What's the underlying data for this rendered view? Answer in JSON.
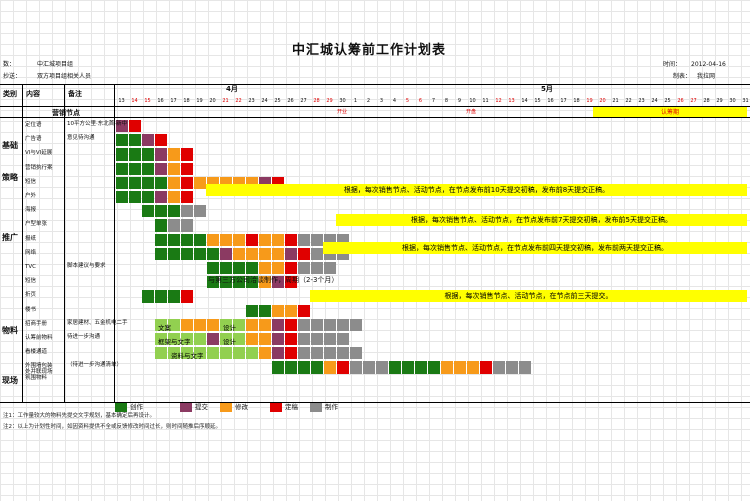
{
  "title": "中汇城认筹前工作计划表",
  "meta": {
    "to_label": "数：",
    "to_value": "中汇城项目组",
    "cc_label": "抄送：",
    "cc_value": "双方项目组相关人员",
    "time_label": "时间：",
    "time_value": "2012-04-16",
    "author_label": "制表：",
    "author_value": "我拉网"
  },
  "headers": {
    "category": "类别",
    "content": "内容",
    "remark": "备注",
    "node_row": "营销节点",
    "month_april": "4月",
    "month_may": "5月"
  },
  "days_april": [
    "13",
    "14",
    "15",
    "16",
    "17",
    "18",
    "19",
    "20",
    "21",
    "22",
    "23",
    "24",
    "25",
    "26",
    "27",
    "28",
    "29",
    "30"
  ],
  "days_may": [
    "1",
    "2",
    "3",
    "4",
    "5",
    "6",
    "7",
    "8",
    "9",
    "10",
    "11",
    "12",
    "13",
    "14",
    "15",
    "16",
    "17",
    "18",
    "19",
    "20",
    "21",
    "22",
    "23",
    "24",
    "25",
    "26",
    "27",
    "28",
    "29",
    "30",
    "31"
  ],
  "weekend_april": [
    "14",
    "15",
    "21",
    "22",
    "28",
    "29"
  ],
  "weekend_may": [
    "5",
    "6",
    "12",
    "13",
    "19",
    "20",
    "26",
    "27"
  ],
  "node_marks": {
    "apr30": "开业",
    "may10": "开盘",
    "renchou": "认筹期"
  },
  "categories": [
    {
      "name": "基础"
    },
    {
      "name": "策略"
    },
    {
      "name": "推广"
    },
    {
      "name": "物料"
    },
    {
      "name": "现场"
    }
  ],
  "rows": [
    {
      "content": "定位语",
      "remark": "10平方公里·东北首·新中",
      "remark2": ""
    },
    {
      "content": "广告语",
      "remark": "意见待沟通"
    },
    {
      "content": "VI与VI延展",
      "remark": ""
    },
    {
      "content": "营销执行案",
      "remark": ""
    },
    {
      "content": "短信",
      "remark": ""
    },
    {
      "content": "户外",
      "remark": ""
    },
    {
      "content": "海报",
      "remark": ""
    },
    {
      "content": "户型单张",
      "remark": ""
    },
    {
      "content": "报纸",
      "remark": ""
    },
    {
      "content": "网络",
      "remark": ""
    },
    {
      "content": "TVC",
      "remark": "脚本建议与要求"
    },
    {
      "content": "短信",
      "remark": ""
    },
    {
      "content": "折页",
      "remark": ""
    },
    {
      "content": "楼书",
      "remark": ""
    },
    {
      "content": "招商手册",
      "remark": "家居建材、五金机电二手"
    },
    {
      "content": "认筹前物料",
      "remark": "待进一步沟通"
    },
    {
      "content": "看楼通道",
      "remark": ""
    },
    {
      "content": "外围墙包装\n处并联现场\n氛围物料",
      "remark": "（待进一步沟通清单）"
    }
  ],
  "banners": {
    "sms": "根据，每次销售节点、活动节点，在节点发布前10天提交初稿，发布前8天提交正稿。",
    "poster": "根据，每次销售节点、活动节点，在节点发布前7天提交初稿，发布前5天提交正稿。",
    "newspaper": "根据，每次销售节点、活动节点，在节点发布前四天提交初稿，发布前两天提交正稿。",
    "sms2": "根据，每次销售节点、活动节点，在节点前三天提交。"
  },
  "inline_text": {
    "tvc": "与第三方公司洽谈制作，周期（2-3个月）",
    "fold_a": "文案",
    "fold_b": "设计",
    "book_a": "框架与文字",
    "book_b": "设计",
    "invest": "资料与文字"
  },
  "legend": {
    "create": "创作",
    "submit": "提交",
    "revise": "修改",
    "final": "定稿",
    "produce": "制作"
  },
  "notes": [
    "注1：工作量较大的物料先提交文字规划，基本确定后再设计。",
    "注2：以上为计划性时间，如因资料提供不全或反馈修改时间过长，则时间随推后序顺延。"
  ],
  "colors": {
    "create": "#1a7a14",
    "submit": "#8b3a62",
    "revise": "#f79a1a",
    "final": "#e00000",
    "produce": "#8c8c8c",
    "banner": "#ffff00",
    "light_green": "#92d050"
  }
}
